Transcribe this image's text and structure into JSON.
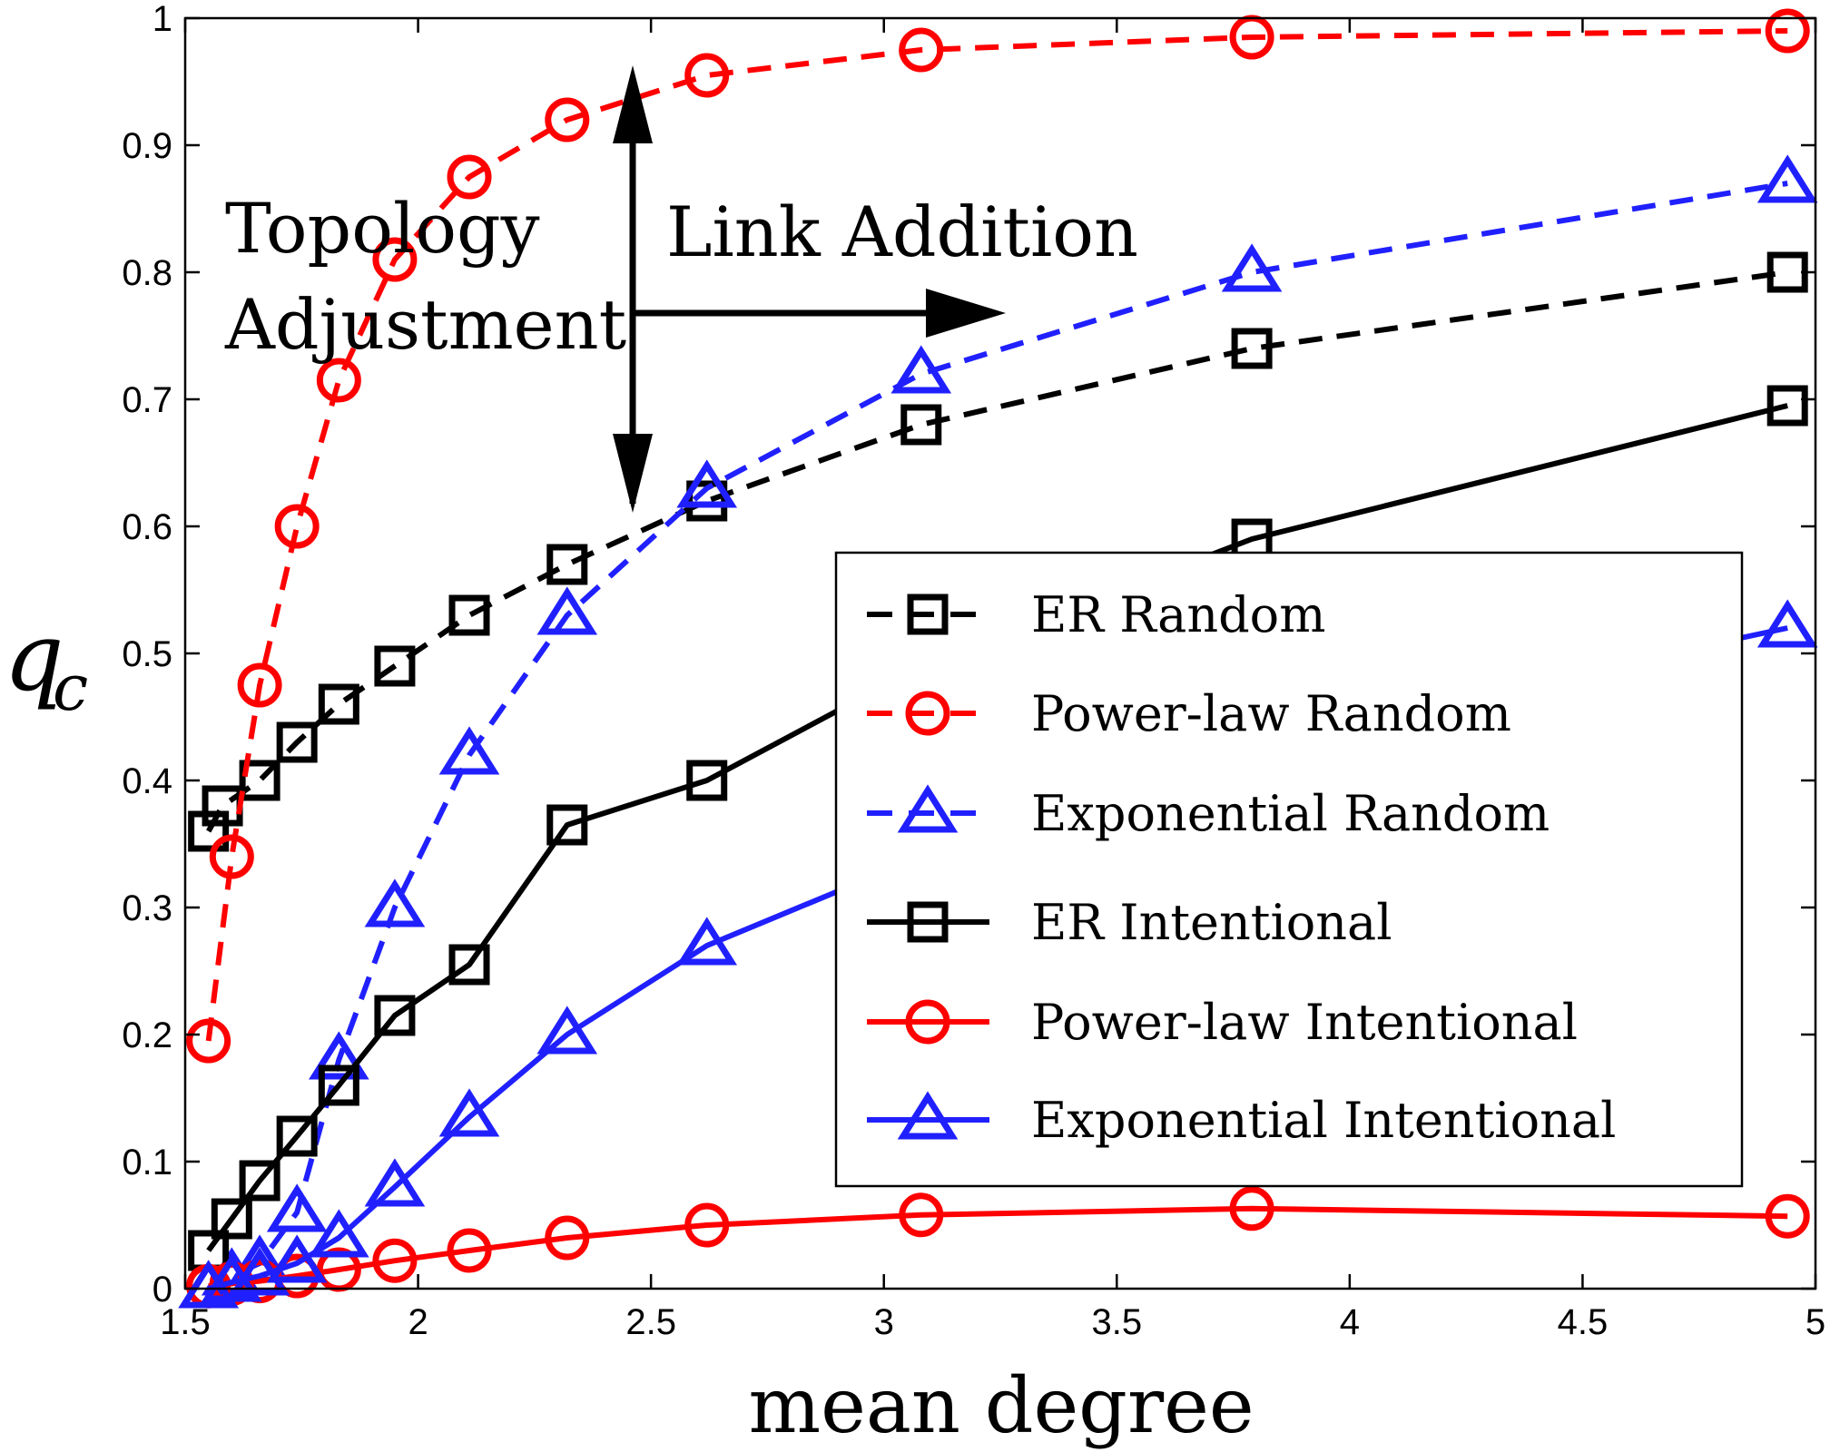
{
  "chart_data": {
    "type": "line",
    "title": "",
    "xlabel": "mean degree",
    "ylabel_base": "q",
    "ylabel_sub": "c",
    "xlim": [
      1.5,
      5
    ],
    "ylim": [
      0,
      1
    ],
    "xticks": [
      1.5,
      2,
      2.5,
      3,
      3.5,
      4,
      4.5,
      5
    ],
    "xtick_labels": [
      "1.5",
      "2",
      "2.5",
      "3",
      "3.5",
      "4",
      "4.5",
      "5"
    ],
    "yticks": [
      0,
      0.1,
      0.2,
      0.3,
      0.4,
      0.5,
      0.6,
      0.7,
      0.8,
      0.9,
      1
    ],
    "ytick_labels": [
      "0",
      "0.1",
      "0.2",
      "0.3",
      "0.4",
      "0.5",
      "0.6",
      "0.7",
      "0.8",
      "0.9",
      "1"
    ],
    "grid": false,
    "legend_position": "right",
    "annotations": {
      "topology_line1": "Topology",
      "topology_line2": "Adjustment",
      "link_addition": "Link Addition"
    },
    "series": [
      {
        "name": "ER Random",
        "color": "#000000",
        "dash": "dashed",
        "marker": "square",
        "x": [
          1.55,
          1.58,
          1.66,
          1.74,
          1.83,
          1.95,
          2.11,
          2.32,
          2.62,
          3.08,
          3.79,
          4.94
        ],
        "y": [
          0.36,
          0.38,
          0.4,
          0.43,
          0.46,
          0.49,
          0.53,
          0.57,
          0.62,
          0.68,
          0.74,
          0.8
        ]
      },
      {
        "name": "Power-law Random",
        "color": "#ff0000",
        "dash": "dashed",
        "marker": "circle",
        "x": [
          1.55,
          1.6,
          1.66,
          1.74,
          1.83,
          1.95,
          2.11,
          2.32,
          2.62,
          3.08,
          3.79,
          4.94
        ],
        "y": [
          0.195,
          0.34,
          0.475,
          0.6,
          0.715,
          0.81,
          0.875,
          0.92,
          0.955,
          0.975,
          0.985,
          0.99
        ]
      },
      {
        "name": "Exponential Random",
        "color": "#2020ff",
        "dash": "dashed",
        "marker": "triangle",
        "x": [
          1.55,
          1.6,
          1.66,
          1.74,
          1.83,
          1.95,
          2.11,
          2.32,
          2.62,
          3.08,
          3.79,
          4.94
        ],
        "y": [
          0.0,
          0.01,
          0.02,
          0.06,
          0.18,
          0.3,
          0.42,
          0.53,
          0.63,
          0.72,
          0.8,
          0.87
        ]
      },
      {
        "name": "ER Intentional",
        "color": "#000000",
        "dash": "solid",
        "marker": "square",
        "x": [
          1.55,
          1.6,
          1.66,
          1.74,
          1.83,
          1.95,
          2.11,
          2.32,
          2.62,
          3.08,
          3.79,
          4.94
        ],
        "y": [
          0.03,
          0.055,
          0.085,
          0.12,
          0.16,
          0.215,
          0.255,
          0.365,
          0.4,
          0.49,
          0.59,
          0.695
        ]
      },
      {
        "name": "Power-law Intentional",
        "color": "#ff0000",
        "dash": "solid",
        "marker": "circle",
        "x": [
          1.55,
          1.6,
          1.66,
          1.74,
          1.83,
          1.95,
          2.11,
          2.32,
          2.62,
          3.08,
          3.79,
          4.94
        ],
        "y": [
          0.002,
          0.004,
          0.006,
          0.01,
          0.015,
          0.022,
          0.03,
          0.04,
          0.05,
          0.058,
          0.063,
          0.057
        ]
      },
      {
        "name": "Exponential Intentional",
        "color": "#2020ff",
        "dash": "solid",
        "marker": "triangle",
        "x": [
          1.55,
          1.6,
          1.66,
          1.74,
          1.83,
          1.95,
          2.11,
          2.32,
          2.62,
          3.08,
          3.79,
          4.94
        ],
        "y": [
          0.0,
          0.005,
          0.01,
          0.02,
          0.04,
          0.08,
          0.135,
          0.2,
          0.27,
          0.34,
          0.43,
          0.52
        ]
      }
    ]
  }
}
